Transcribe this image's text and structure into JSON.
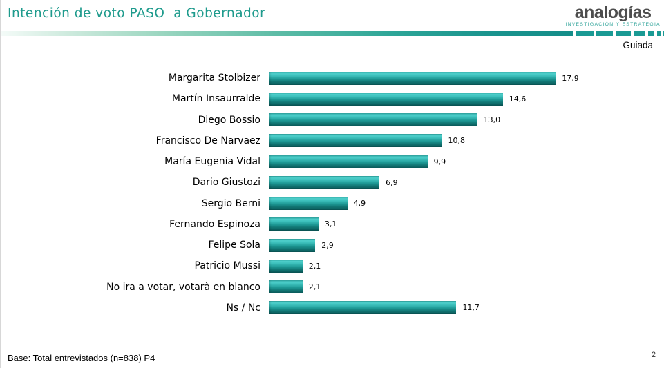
{
  "header": {
    "title": "Intención de voto PASO  a Gobernador",
    "logo": {
      "wordmark": "analogías",
      "tagline": "INVESTIGACIÓN Y ESTRATEGIA"
    },
    "mode_label": "Guiada"
  },
  "chart_data": {
    "type": "bar",
    "orientation": "horizontal",
    "title": "Intención de voto PASO a Gobernador",
    "categories": [
      "Margarita Stolbizer",
      "Martín Insaurralde",
      "Diego Bossio",
      "Francisco De Narvaez",
      "María Eugenia Vidal",
      "Dario Giustozi",
      "Sergio Berni",
      "Fernando Espinoza",
      "Felipe Sola",
      "Patricio Mussi",
      "No ira a votar, votarà en blanco",
      "Ns / Nc"
    ],
    "values": [
      17.9,
      14.6,
      13.0,
      10.8,
      9.9,
      6.9,
      4.9,
      3.1,
      2.9,
      2.1,
      2.1,
      11.7
    ],
    "value_labels": [
      "17,9",
      "14,6",
      "13,0",
      "10,8",
      "9,9",
      "6,9",
      "4,9",
      "3,1",
      "2,9",
      "2,1",
      "2,1",
      "11,7"
    ],
    "xlabel": "",
    "ylabel": "",
    "xlim": [
      0,
      18.6
    ],
    "grid": false,
    "legend": false,
    "data_labels": true
  },
  "footer": {
    "base_note": "Base: Total entrevistados (n=838) P4",
    "page_number": "2"
  },
  "colors": {
    "title_teal": "#1f9b8d",
    "rule_teal": "#1a9a94",
    "bar_top": "#4ecfcb",
    "bar_bottom": "#0a5656",
    "logo_gray": "#4d4d4d",
    "logo_tagline_teal": "#35a69c",
    "text": "#000000"
  }
}
